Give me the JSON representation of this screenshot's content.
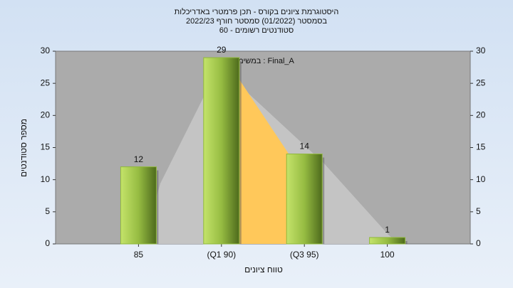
{
  "chart_data": {
    "type": "bar",
    "title_lines": [
      "היסטוגרמת ציונים בקורס - תכן פרמטרי באדריכלות",
      "בסמסטר  (01/2022)  סמסטר חורף 2022/23",
      "סטודנטים רשומים - 60"
    ],
    "annotation": "במשימה : Final_A",
    "x_label": "טווח ציונים",
    "y_label": "מספר סטודנטים",
    "categories": [
      "85",
      "(Q1 90)",
      "(Q3 95)",
      "100"
    ],
    "values": [
      12,
      29,
      14,
      1
    ],
    "color": "#8fb83a",
    "ylim": [
      0,
      30
    ],
    "yticks": [
      0,
      5,
      10,
      15,
      20,
      25,
      30
    ]
  }
}
